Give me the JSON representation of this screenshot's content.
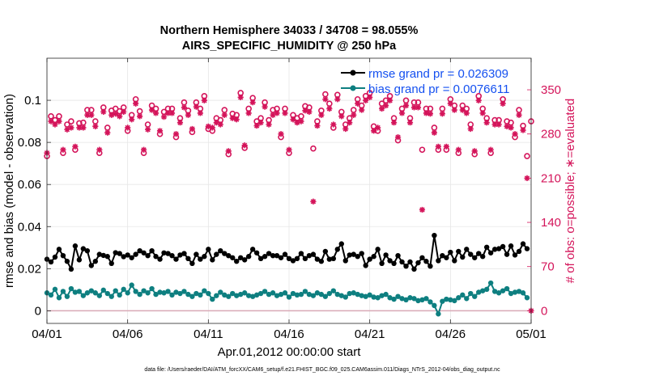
{
  "chart_data": {
    "type": "line",
    "title": "Northern Hemisphere 34033 / 34708 = 98.055%",
    "subtitle": "AIRS_SPECIFIC_HUMIDITY @ 250 hPa",
    "xlabel": "Apr.01,2012 00:00:00 start",
    "ylabel": "rmse and bias (model - observation)",
    "y2label": "# of obs: o=possible; ∗=evaluated",
    "footer": "data file: /Users/raeder/DAI/ATM_forcXX/CAM6_setup/f.e21.FHIST_BGC.f09_025.CAM6assim.011/Diags_NTrS_2012-04/obs_diag_output.nc",
    "xlim": [
      0,
      30
    ],
    "ylim": [
      -0.006,
      0.12
    ],
    "y2lim": [
      -20,
      400
    ],
    "x_ticks": [
      0,
      5,
      10,
      15,
      20,
      25,
      30
    ],
    "x_tick_labels": [
      "04/01",
      "04/06",
      "04/11",
      "04/16",
      "04/21",
      "04/26",
      "05/01"
    ],
    "y_ticks": [
      0,
      0.02,
      0.04,
      0.06,
      0.08,
      0.1
    ],
    "y_tick_labels": [
      "0",
      "0.02",
      "0.04",
      "0.06",
      "0.08",
      "0.1"
    ],
    "y2_ticks": [
      0,
      70,
      140,
      210,
      280,
      350
    ],
    "y2_tick_labels": [
      "0",
      "70",
      "140",
      "210",
      "280",
      "350"
    ],
    "legend": {
      "location": "top-right",
      "entries": [
        "rmse grand pr = 0.026309",
        "bias grand pr = 0.0076611"
      ]
    },
    "colors": {
      "rmse": "#000000",
      "bias": "#0e7f80",
      "obs": "#d4145a",
      "legend_text": "#1450f0",
      "axis": "#262626",
      "grid": "#e6e6e6",
      "zero_line": "#d9a9b5"
    },
    "series": [
      {
        "name": "rmse",
        "x": [
          0,
          0.25,
          0.5,
          0.75,
          1,
          1.25,
          1.5,
          1.75,
          2,
          2.25,
          2.5,
          2.75,
          3,
          3.25,
          3.5,
          3.75,
          4,
          4.25,
          4.5,
          4.75,
          5,
          5.25,
          5.5,
          5.75,
          6,
          6.25,
          6.5,
          6.75,
          7,
          7.25,
          7.5,
          7.75,
          8,
          8.25,
          8.5,
          8.75,
          9,
          9.25,
          9.5,
          9.75,
          10,
          10.25,
          10.5,
          10.75,
          11,
          11.25,
          11.5,
          11.75,
          12,
          12.25,
          12.5,
          12.75,
          13,
          13.25,
          13.5,
          13.75,
          14,
          14.25,
          14.5,
          14.75,
          15,
          15.25,
          15.5,
          15.75,
          16,
          16.25,
          16.5,
          16.75,
          17,
          17.25,
          17.5,
          17.75,
          18,
          18.25,
          18.5,
          18.75,
          19,
          19.25,
          19.5,
          19.75,
          20,
          20.25,
          20.5,
          20.75,
          21,
          21.25,
          21.5,
          21.75,
          22,
          22.25,
          22.5,
          22.75,
          23,
          23.25,
          23.5,
          23.75,
          24,
          24.25,
          24.5,
          24.75,
          25,
          25.25,
          25.5,
          25.75,
          26,
          26.25,
          26.5,
          26.75,
          27,
          27.25,
          27.5,
          27.75,
          28,
          28.25,
          28.5,
          28.75,
          29,
          29.25,
          29.5,
          29.75
        ],
        "values": [
          0.0245,
          0.0232,
          0.0255,
          0.0292,
          0.0262,
          0.0235,
          0.0198,
          0.0308,
          0.0242,
          0.0295,
          0.0285,
          0.0215,
          0.0235,
          0.0268,
          0.0263,
          0.0258,
          0.0225,
          0.0276,
          0.0272,
          0.0257,
          0.0265,
          0.0252,
          0.0268,
          0.0285,
          0.0275,
          0.0262,
          0.0285,
          0.0258,
          0.0245,
          0.0275,
          0.0272,
          0.0262,
          0.0245,
          0.0265,
          0.0272,
          0.0248,
          0.0225,
          0.0268,
          0.0245,
          0.0258,
          0.0292,
          0.0242,
          0.0268,
          0.0285,
          0.0272,
          0.0262,
          0.0252,
          0.0235,
          0.0252,
          0.0242,
          0.0258,
          0.0292,
          0.0275,
          0.0248,
          0.0258,
          0.0272,
          0.0262,
          0.0262,
          0.0252,
          0.0268,
          0.0248,
          0.0238,
          0.0248,
          0.0272,
          0.0248,
          0.0262,
          0.0268,
          0.0245,
          0.0235,
          0.0282,
          0.0245,
          0.0248,
          0.0292,
          0.0318,
          0.0238,
          0.0265,
          0.0268,
          0.0258,
          0.0272,
          0.0215,
          0.0245,
          0.0258,
          0.0292,
          0.0225,
          0.0265,
          0.0238,
          0.0225,
          0.0262,
          0.0232,
          0.0212,
          0.0232,
          0.0198,
          0.0228,
          0.0252,
          0.0235,
          0.0212,
          0.0358,
          0.0238,
          0.0262,
          0.0252,
          0.0278,
          0.0238,
          0.0282,
          0.0255,
          0.0292,
          0.0268,
          0.0252,
          0.0272,
          0.0258,
          0.0302,
          0.0275,
          0.0292,
          0.0295,
          0.0305,
          0.0268,
          0.0308,
          0.0265,
          0.0282,
          0.0318,
          0.0295
        ]
      },
      {
        "name": "bias",
        "x": [
          0,
          0.25,
          0.5,
          0.75,
          1,
          1.25,
          1.5,
          1.75,
          2,
          2.25,
          2.5,
          2.75,
          3,
          3.25,
          3.5,
          3.75,
          4,
          4.25,
          4.5,
          4.75,
          5,
          5.25,
          5.5,
          5.75,
          6,
          6.25,
          6.5,
          6.75,
          7,
          7.25,
          7.5,
          7.75,
          8,
          8.25,
          8.5,
          8.75,
          9,
          9.25,
          9.5,
          9.75,
          10,
          10.25,
          10.5,
          10.75,
          11,
          11.25,
          11.5,
          11.75,
          12,
          12.25,
          12.5,
          12.75,
          13,
          13.25,
          13.5,
          13.75,
          14,
          14.25,
          14.5,
          14.75,
          15,
          15.25,
          15.5,
          15.75,
          16,
          16.25,
          16.5,
          16.75,
          17,
          17.25,
          17.5,
          17.75,
          18,
          18.25,
          18.5,
          18.75,
          19,
          19.25,
          19.5,
          19.75,
          20,
          20.25,
          20.5,
          20.75,
          21,
          21.25,
          21.5,
          21.75,
          22,
          22.25,
          22.5,
          22.75,
          23,
          23.25,
          23.5,
          23.75,
          24,
          24.25,
          24.5,
          24.75,
          25,
          25.25,
          25.5,
          25.75,
          26,
          26.25,
          26.5,
          26.75,
          27,
          27.25,
          27.5,
          27.75,
          28,
          28.25,
          28.5,
          28.75,
          29,
          29.25,
          29.5,
          29.75
        ],
        "values": [
          0.0085,
          0.0075,
          0.0102,
          0.0062,
          0.0092,
          0.0068,
          0.0105,
          0.0088,
          0.0092,
          0.0072,
          0.0085,
          0.0095,
          0.0085,
          0.0072,
          0.0098,
          0.0082,
          0.0068,
          0.0095,
          0.0075,
          0.0102,
          0.0085,
          0.0122,
          0.0092,
          0.0078,
          0.0095,
          0.0085,
          0.0105,
          0.0078,
          0.0088,
          0.0085,
          0.0092,
          0.0075,
          0.0088,
          0.0082,
          0.0092,
          0.0078,
          0.0068,
          0.0082,
          0.0075,
          0.0095,
          0.0082,
          0.0055,
          0.0072,
          0.0088,
          0.0075,
          0.0068,
          0.0082,
          0.0072,
          0.0078,
          0.0085,
          0.0072,
          0.0068,
          0.0075,
          0.0082,
          0.0092,
          0.0078,
          0.0085,
          0.0072,
          0.0078,
          0.0085,
          0.0065,
          0.0082,
          0.0075,
          0.0078,
          0.0092,
          0.0078,
          0.0072,
          0.0085,
          0.0078,
          0.0068,
          0.0082,
          0.0095,
          0.0078,
          0.0072,
          0.0065,
          0.0082,
          0.0085,
          0.0078,
          0.0072,
          0.0068,
          0.0075,
          0.0065,
          0.0062,
          0.0072,
          0.0078,
          0.0062,
          0.0055,
          0.0068,
          0.0058,
          0.0052,
          0.0062,
          0.0058,
          0.0048,
          0.0052,
          0.0058,
          0.0042,
          0.0025,
          -0.0015,
          0.0045,
          0.0055,
          0.0052,
          0.0048,
          0.0062,
          0.0075,
          0.0058,
          0.0082,
          0.0068,
          0.0088,
          0.0095,
          0.0102,
          0.0132,
          0.0092,
          0.0085,
          0.0095,
          0.0105,
          0.0082,
          0.0088,
          0.0092,
          0.0085,
          0.0062
        ]
      }
    ],
    "obs_possible": {
      "x": [
        0,
        0.25,
        0.5,
        0.75,
        1,
        1.25,
        1.5,
        1.75,
        2,
        2.25,
        2.5,
        2.75,
        3,
        3.25,
        3.5,
        3.75,
        4,
        4.25,
        4.5,
        4.75,
        5,
        5.25,
        5.5,
        5.75,
        6,
        6.25,
        6.5,
        6.75,
        7,
        7.25,
        7.5,
        7.75,
        8,
        8.25,
        8.5,
        8.75,
        9,
        9.25,
        9.5,
        9.75,
        10,
        10.25,
        10.5,
        10.75,
        11,
        11.25,
        11.5,
        11.75,
        12,
        12.25,
        12.5,
        12.75,
        13,
        13.25,
        13.5,
        13.75,
        14,
        14.25,
        14.5,
        14.75,
        15,
        15.25,
        15.5,
        15.75,
        16,
        16.25,
        16.5,
        16.75,
        17,
        17.25,
        17.5,
        17.75,
        18,
        18.25,
        18.5,
        18.75,
        19,
        19.25,
        19.5,
        19.75,
        20,
        20.25,
        20.5,
        20.75,
        21,
        21.25,
        21.5,
        21.75,
        22,
        22.25,
        22.5,
        22.75,
        23,
        23.25,
        23.5,
        23.75,
        24,
        24.25,
        24.5,
        24.75,
        25,
        25.25,
        25.5,
        25.75,
        26,
        26.25,
        26.5,
        26.75,
        27,
        27.25,
        27.5,
        27.75,
        28,
        28.25,
        28.5,
        28.75,
        29,
        29.25,
        29.5,
        29.75,
        30
      ],
      "values": [
        245,
        308,
        302,
        308,
        250,
        295,
        300,
        255,
        297,
        298,
        318,
        318,
        300,
        250,
        322,
        290,
        317,
        320,
        316,
        322,
        285,
        310,
        335,
        316,
        250,
        295,
        325,
        320,
        280,
        315,
        320,
        320,
        275,
        305,
        330,
        317,
        283,
        330,
        320,
        340,
        288,
        285,
        305,
        302,
        318,
        248,
        312,
        310,
        345,
        258,
        320,
        337,
        300,
        305,
        330,
        302,
        318,
        320,
        275,
        320,
        250,
        310,
        305,
        308,
        324,
        322,
        257,
        300,
        317,
        343,
        328,
        290,
        342,
        315,
        295,
        305,
        318,
        335,
        325,
        340,
        345,
        292,
        285,
        328,
        333,
        340,
        305,
        270,
        320,
        333,
        305,
        330,
        330,
        255,
        320,
        320,
        290,
        255,
        320,
        255,
        335,
        325,
        250,
        325,
        320,
        295,
        248,
        340,
        320,
        305,
        250,
        302,
        302,
        335,
        300,
        298,
        275,
        318,
        293,
        245,
        300
      ]
    },
    "obs_evaluated": {
      "x": [
        0,
        0.25,
        0.5,
        0.75,
        1,
        1.25,
        1.5,
        1.75,
        2,
        2.25,
        2.5,
        2.75,
        3,
        3.25,
        3.5,
        3.75,
        4,
        4.25,
        4.5,
        4.75,
        5,
        5.25,
        5.5,
        5.75,
        6,
        6.25,
        6.5,
        6.75,
        7,
        7.25,
        7.5,
        7.75,
        8,
        8.25,
        8.5,
        8.75,
        9,
        9.25,
        9.5,
        9.75,
        10,
        10.25,
        10.5,
        10.75,
        11,
        11.25,
        11.5,
        11.75,
        12,
        12.25,
        12.5,
        12.75,
        13,
        13.25,
        13.5,
        13.75,
        14,
        14.25,
        14.5,
        14.75,
        15,
        15.25,
        15.5,
        15.75,
        16,
        16.25,
        16.5,
        16.75,
        17,
        17.25,
        17.5,
        17.75,
        18,
        18.25,
        18.5,
        18.75,
        19,
        19.25,
        19.5,
        19.75,
        20,
        20.25,
        20.5,
        20.75,
        21,
        21.25,
        21.5,
        21.75,
        22,
        22.25,
        22.5,
        22.75,
        23,
        23.25,
        23.5,
        23.75,
        24,
        24.25,
        24.5,
        24.75,
        25,
        25.25,
        25.5,
        25.75,
        26,
        26.25,
        26.5,
        26.75,
        27,
        27.25,
        27.5,
        27.75,
        28,
        28.25,
        28.5,
        28.75,
        29,
        29.25,
        29.5,
        29.75,
        30
      ],
      "values": [
        250,
        300,
        295,
        300,
        255,
        287,
        290,
        260,
        290,
        290,
        310,
        310,
        292,
        255,
        315,
        282,
        310,
        312,
        308,
        315,
        290,
        303,
        328,
        308,
        255,
        287,
        318,
        313,
        285,
        307,
        313,
        313,
        280,
        298,
        322,
        310,
        288,
        323,
        313,
        333,
        292,
        290,
        298,
        295,
        310,
        253,
        305,
        303,
        338,
        262,
        313,
        330,
        293,
        298,
        323,
        295,
        310,
        313,
        280,
        313,
        255,
        303,
        298,
        300,
        317,
        315,
        173,
        293,
        310,
        335,
        320,
        295,
        335,
        308,
        288,
        298,
        310,
        328,
        318,
        333,
        338,
        285,
        290,
        320,
        325,
        333,
        298,
        275,
        313,
        325,
        298,
        322,
        322,
        160,
        313,
        312,
        282,
        260,
        312,
        260,
        328,
        318,
        255,
        318,
        313,
        288,
        253,
        333,
        313,
        298,
        255,
        295,
        295,
        328,
        292,
        290,
        280,
        310,
        286,
        210,
        0
      ]
    }
  }
}
